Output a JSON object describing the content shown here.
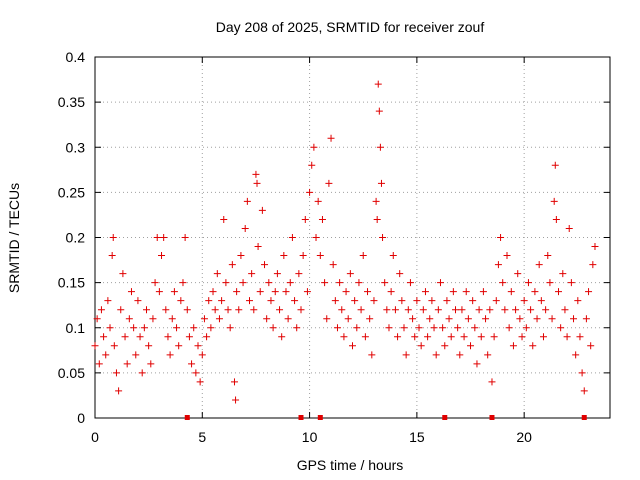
{
  "chart_data": {
    "type": "scatter",
    "title": "Day 208 of 2025, SRMTID for receiver zouf",
    "xlabel": "GPS time / hours",
    "ylabel": "SRMTID / TECUs",
    "xlim": [
      0,
      24
    ],
    "ylim": [
      0,
      0.4
    ],
    "xticks": [
      0,
      5,
      10,
      15,
      20
    ],
    "yticks": [
      0,
      0.05,
      0.1,
      0.15,
      0.2,
      0.25,
      0.3,
      0.35,
      0.4
    ],
    "xtick_labels": [
      "0",
      "5",
      "10",
      "15",
      "20"
    ],
    "ytick_labels": [
      "0",
      "0.05",
      "0.1",
      "0.15",
      "0.2",
      "0.25",
      "0.3",
      "0.35",
      "0.4"
    ],
    "grid": true,
    "marker": "+",
    "color": "#e00000",
    "series": [
      {
        "name": "SRMTID",
        "points": [
          [
            0.0,
            0.08
          ],
          [
            0.1,
            0.11
          ],
          [
            0.2,
            0.06
          ],
          [
            0.3,
            0.12
          ],
          [
            0.4,
            0.09
          ],
          [
            0.5,
            0.07
          ],
          [
            0.6,
            0.13
          ],
          [
            0.7,
            0.1
          ],
          [
            0.8,
            0.18
          ],
          [
            0.85,
            0.2
          ],
          [
            0.9,
            0.08
          ],
          [
            1.0,
            0.05
          ],
          [
            1.1,
            0.03
          ],
          [
            1.2,
            0.12
          ],
          [
            1.3,
            0.16
          ],
          [
            1.4,
            0.09
          ],
          [
            1.5,
            0.06
          ],
          [
            1.6,
            0.11
          ],
          [
            1.7,
            0.14
          ],
          [
            1.8,
            0.1
          ],
          [
            1.9,
            0.07
          ],
          [
            2.0,
            0.13
          ],
          [
            2.1,
            0.09
          ],
          [
            2.2,
            0.05
          ],
          [
            2.3,
            0.1
          ],
          [
            2.4,
            0.12
          ],
          [
            2.5,
            0.08
          ],
          [
            2.6,
            0.06
          ],
          [
            2.7,
            0.11
          ],
          [
            2.8,
            0.15
          ],
          [
            2.9,
            0.2
          ],
          [
            3.0,
            0.14
          ],
          [
            3.1,
            0.18
          ],
          [
            3.2,
            0.2
          ],
          [
            3.3,
            0.12
          ],
          [
            3.4,
            0.09
          ],
          [
            3.5,
            0.07
          ],
          [
            3.6,
            0.11
          ],
          [
            3.7,
            0.14
          ],
          [
            3.8,
            0.1
          ],
          [
            3.9,
            0.08
          ],
          [
            4.0,
            0.13
          ],
          [
            4.1,
            0.15
          ],
          [
            4.2,
            0.2
          ],
          [
            4.3,
            0.12
          ],
          [
            4.4,
            0.09
          ],
          [
            4.5,
            0.06
          ],
          [
            4.6,
            0.1
          ],
          [
            4.7,
            0.05
          ],
          [
            4.8,
            0.08
          ],
          [
            4.9,
            0.04
          ],
          [
            5.0,
            0.07
          ],
          [
            5.1,
            0.11
          ],
          [
            5.2,
            0.09
          ],
          [
            5.3,
            0.13
          ],
          [
            5.4,
            0.1
          ],
          [
            5.5,
            0.14
          ],
          [
            5.6,
            0.12
          ],
          [
            5.7,
            0.16
          ],
          [
            5.8,
            0.11
          ],
          [
            5.9,
            0.13
          ],
          [
            6.0,
            0.22
          ],
          [
            6.1,
            0.15
          ],
          [
            6.2,
            0.12
          ],
          [
            6.3,
            0.1
          ],
          [
            6.4,
            0.17
          ],
          [
            6.5,
            0.04
          ],
          [
            6.55,
            0.02
          ],
          [
            6.6,
            0.14
          ],
          [
            6.7,
            0.12
          ],
          [
            6.8,
            0.18
          ],
          [
            6.9,
            0.15
          ],
          [
            7.0,
            0.21
          ],
          [
            7.1,
            0.24
          ],
          [
            7.2,
            0.13
          ],
          [
            7.3,
            0.16
          ],
          [
            7.4,
            0.12
          ],
          [
            7.5,
            0.27
          ],
          [
            7.55,
            0.26
          ],
          [
            7.6,
            0.19
          ],
          [
            7.7,
            0.14
          ],
          [
            7.8,
            0.23
          ],
          [
            7.9,
            0.17
          ],
          [
            8.0,
            0.11
          ],
          [
            8.1,
            0.15
          ],
          [
            8.2,
            0.13
          ],
          [
            8.3,
            0.1
          ],
          [
            8.4,
            0.14
          ],
          [
            8.5,
            0.16
          ],
          [
            8.6,
            0.12
          ],
          [
            8.7,
            0.09
          ],
          [
            8.8,
            0.18
          ],
          [
            8.9,
            0.14
          ],
          [
            9.0,
            0.11
          ],
          [
            9.1,
            0.15
          ],
          [
            9.2,
            0.2
          ],
          [
            9.3,
            0.13
          ],
          [
            9.4,
            0.1
          ],
          [
            9.5,
            0.16
          ],
          [
            9.6,
            0.12
          ],
          [
            9.7,
            0.18
          ],
          [
            9.8,
            0.22
          ],
          [
            9.9,
            0.14
          ],
          [
            10.0,
            0.25
          ],
          [
            10.1,
            0.28
          ],
          [
            10.2,
            0.3
          ],
          [
            10.3,
            0.2
          ],
          [
            10.4,
            0.24
          ],
          [
            10.5,
            0.18
          ],
          [
            10.6,
            0.22
          ],
          [
            10.7,
            0.15
          ],
          [
            10.8,
            0.11
          ],
          [
            10.9,
            0.26
          ],
          [
            11.0,
            0.31
          ],
          [
            11.1,
            0.17
          ],
          [
            11.2,
            0.13
          ],
          [
            11.3,
            0.1
          ],
          [
            11.4,
            0.15
          ],
          [
            11.5,
            0.12
          ],
          [
            11.6,
            0.09
          ],
          [
            11.7,
            0.14
          ],
          [
            11.8,
            0.11
          ],
          [
            11.9,
            0.16
          ],
          [
            12.0,
            0.08
          ],
          [
            12.1,
            0.13
          ],
          [
            12.2,
            0.1
          ],
          [
            12.3,
            0.15
          ],
          [
            12.4,
            0.12
          ],
          [
            12.5,
            0.18
          ],
          [
            12.6,
            0.09
          ],
          [
            12.7,
            0.14
          ],
          [
            12.8,
            0.11
          ],
          [
            12.9,
            0.07
          ],
          [
            13.0,
            0.13
          ],
          [
            13.1,
            0.24
          ],
          [
            13.15,
            0.22
          ],
          [
            13.2,
            0.37
          ],
          [
            13.25,
            0.34
          ],
          [
            13.3,
            0.3
          ],
          [
            13.35,
            0.26
          ],
          [
            13.4,
            0.2
          ],
          [
            13.5,
            0.15
          ],
          [
            13.6,
            0.12
          ],
          [
            13.7,
            0.1
          ],
          [
            13.8,
            0.14
          ],
          [
            13.9,
            0.18
          ],
          [
            14.0,
            0.12
          ],
          [
            14.1,
            0.09
          ],
          [
            14.2,
            0.16
          ],
          [
            14.3,
            0.13
          ],
          [
            14.4,
            0.1
          ],
          [
            14.5,
            0.07
          ],
          [
            14.6,
            0.12
          ],
          [
            14.7,
            0.15
          ],
          [
            14.8,
            0.11
          ],
          [
            14.9,
            0.09
          ],
          [
            15.0,
            0.13
          ],
          [
            15.1,
            0.1
          ],
          [
            15.2,
            0.08
          ],
          [
            15.3,
            0.12
          ],
          [
            15.4,
            0.14
          ],
          [
            15.5,
            0.09
          ],
          [
            15.6,
            0.11
          ],
          [
            15.7,
            0.13
          ],
          [
            15.8,
            0.1
          ],
          [
            15.9,
            0.07
          ],
          [
            16.0,
            0.12
          ],
          [
            16.1,
            0.15
          ],
          [
            16.2,
            0.1
          ],
          [
            16.3,
            0.08
          ],
          [
            16.4,
            0.13
          ],
          [
            16.5,
            0.11
          ],
          [
            16.6,
            0.09
          ],
          [
            16.7,
            0.14
          ],
          [
            16.8,
            0.12
          ],
          [
            16.9,
            0.1
          ],
          [
            17.0,
            0.07
          ],
          [
            17.1,
            0.12
          ],
          [
            17.2,
            0.09
          ],
          [
            17.3,
            0.14
          ],
          [
            17.4,
            0.11
          ],
          [
            17.5,
            0.08
          ],
          [
            17.6,
            0.13
          ],
          [
            17.7,
            0.1
          ],
          [
            17.8,
            0.06
          ],
          [
            17.9,
            0.12
          ],
          [
            18.0,
            0.09
          ],
          [
            18.1,
            0.14
          ],
          [
            18.2,
            0.11
          ],
          [
            18.3,
            0.07
          ],
          [
            18.4,
            0.12
          ],
          [
            18.5,
            0.04
          ],
          [
            18.6,
            0.09
          ],
          [
            18.7,
            0.13
          ],
          [
            18.8,
            0.17
          ],
          [
            18.9,
            0.2
          ],
          [
            19.0,
            0.15
          ],
          [
            19.1,
            0.12
          ],
          [
            19.2,
            0.18
          ],
          [
            19.3,
            0.1
          ],
          [
            19.4,
            0.14
          ],
          [
            19.5,
            0.08
          ],
          [
            19.6,
            0.12
          ],
          [
            19.7,
            0.16
          ],
          [
            19.8,
            0.11
          ],
          [
            19.9,
            0.09
          ],
          [
            20.0,
            0.13
          ],
          [
            20.1,
            0.1
          ],
          [
            20.2,
            0.15
          ],
          [
            20.3,
            0.12
          ],
          [
            20.4,
            0.08
          ],
          [
            20.5,
            0.14
          ],
          [
            20.6,
            0.11
          ],
          [
            20.7,
            0.17
          ],
          [
            20.8,
            0.13
          ],
          [
            20.9,
            0.09
          ],
          [
            21.0,
            0.12
          ],
          [
            21.1,
            0.18
          ],
          [
            21.2,
            0.15
          ],
          [
            21.3,
            0.11
          ],
          [
            21.4,
            0.24
          ],
          [
            21.45,
            0.28
          ],
          [
            21.5,
            0.22
          ],
          [
            21.6,
            0.14
          ],
          [
            21.7,
            0.1
          ],
          [
            21.8,
            0.16
          ],
          [
            21.9,
            0.12
          ],
          [
            22.0,
            0.09
          ],
          [
            22.1,
            0.21
          ],
          [
            22.2,
            0.15
          ],
          [
            22.3,
            0.11
          ],
          [
            22.4,
            0.07
          ],
          [
            22.5,
            0.13
          ],
          [
            22.6,
            0.09
          ],
          [
            22.7,
            0.05
          ],
          [
            22.8,
            0.03
          ],
          [
            22.9,
            0.11
          ],
          [
            23.0,
            0.14
          ],
          [
            23.1,
            0.08
          ],
          [
            23.2,
            0.17
          ],
          [
            23.3,
            0.19
          ]
        ]
      }
    ],
    "baseline_markers_x": [
      4.3,
      9.6,
      10.5,
      16.3,
      18.5,
      22.8
    ]
  }
}
